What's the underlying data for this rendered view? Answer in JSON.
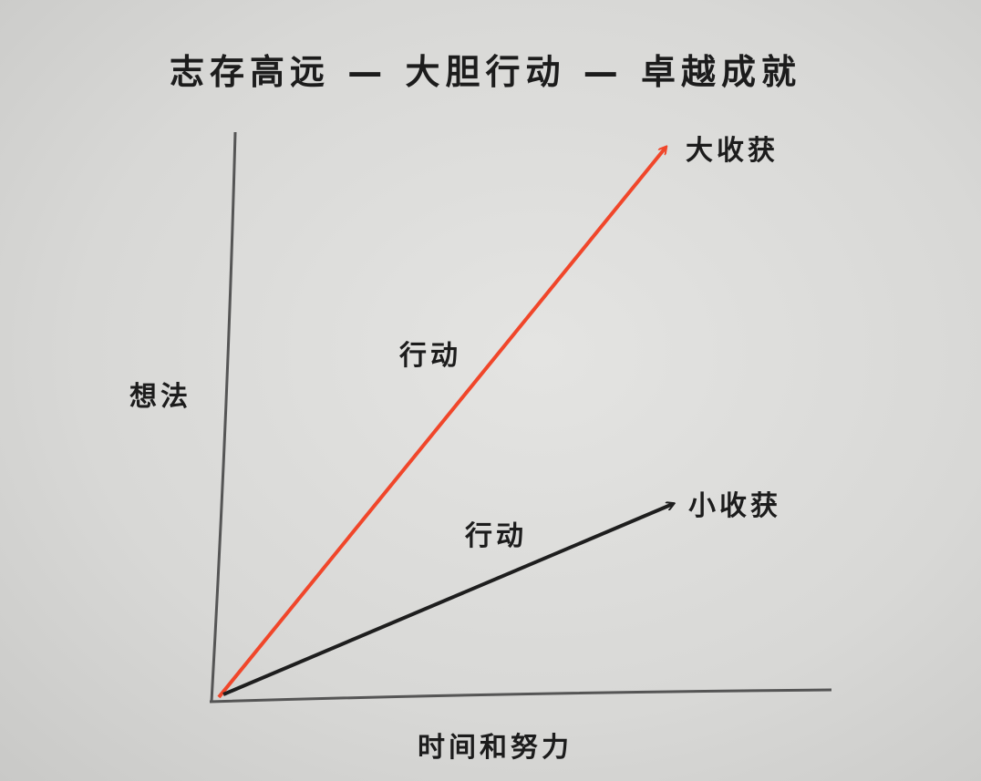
{
  "title": "志存高远 — 大胆行动 — 卓越成就",
  "y_axis_label": "想法",
  "x_axis_label": "时间和努力",
  "arrows": [
    {
      "label": "行动",
      "end_label": "大收获",
      "color": "#f0462a"
    },
    {
      "label": "行动",
      "end_label": "小收获",
      "color": "#1e1e1e"
    }
  ]
}
